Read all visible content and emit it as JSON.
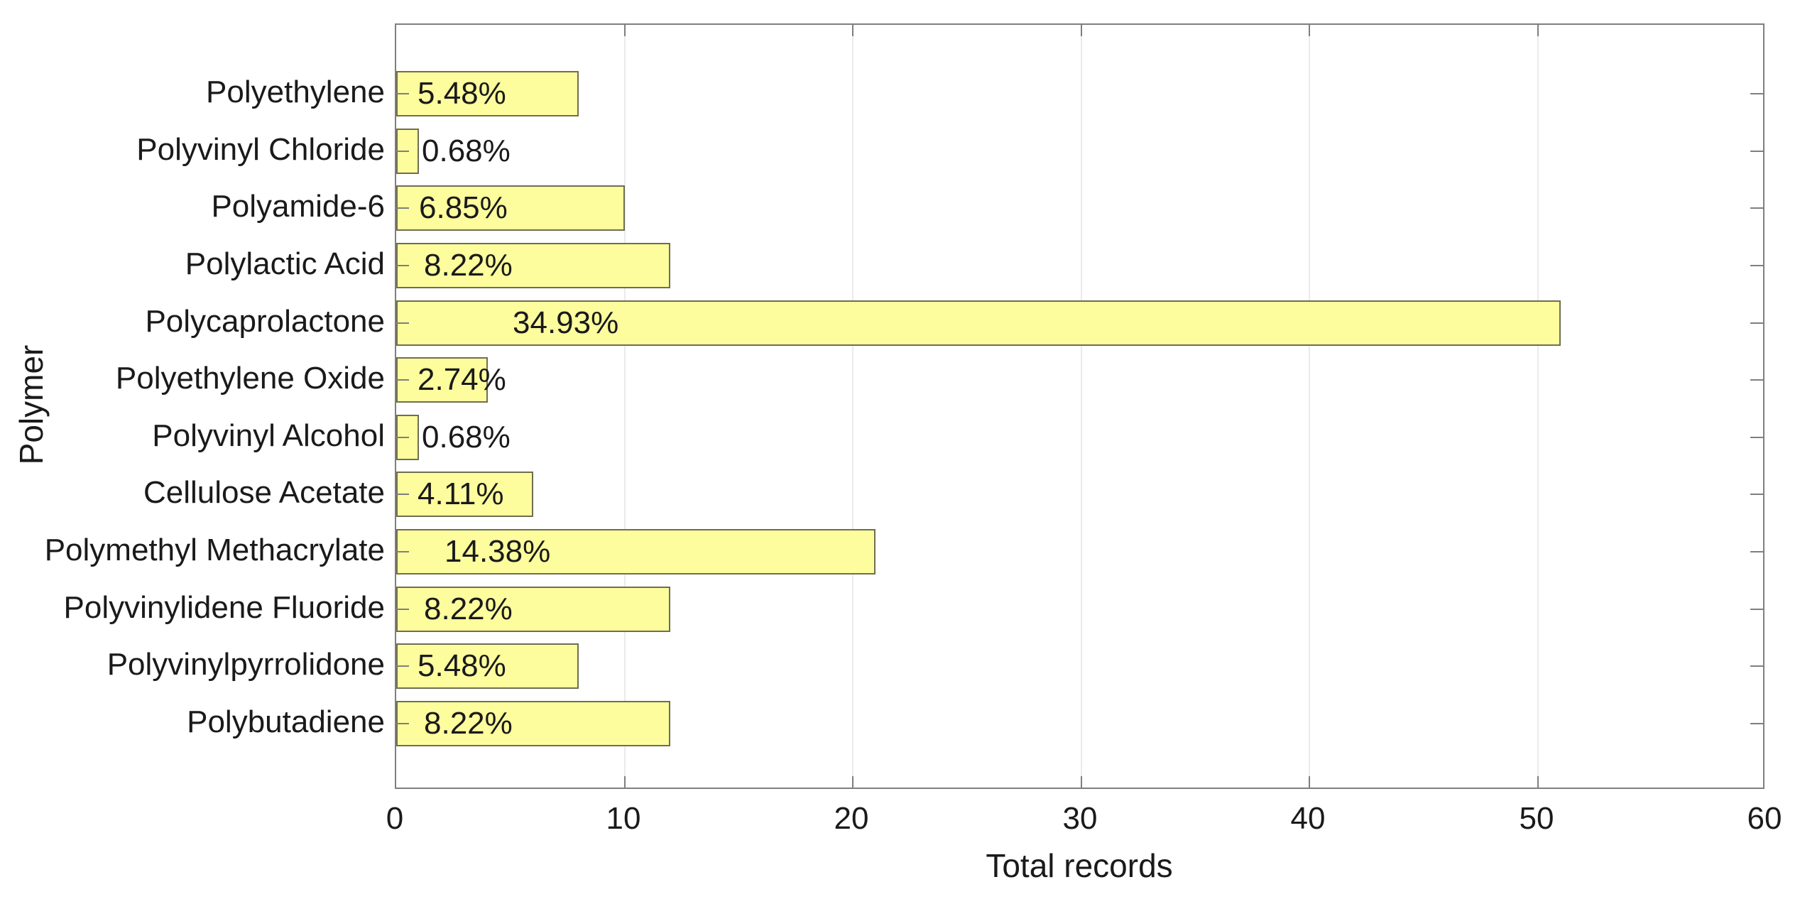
{
  "chart_data": {
    "type": "bar",
    "orientation": "horizontal",
    "xlabel": "Total records",
    "ylabel": "Polymer",
    "xlim": [
      0,
      60
    ],
    "xticks": [
      0,
      10,
      20,
      30,
      40,
      50,
      60
    ],
    "grid": "vertical",
    "legend": "none",
    "categories": [
      "Polyethylene",
      "Polyvinyl Chloride",
      "Polyamide-6",
      "Polylactic Acid",
      "Polycaprolactone",
      "Polyethylene Oxide",
      "Polyvinyl Alcohol",
      "Cellulose Acetate",
      "Polymethyl Methacrylate",
      "Polyvinylidene Fluoride",
      "Polyvinylpyrrolidone",
      "Polybutadiene"
    ],
    "values": [
      8,
      1,
      10,
      12,
      51,
      4,
      1,
      6,
      21,
      12,
      8,
      12
    ],
    "bar_labels": [
      "5.48%",
      "0.68%",
      "6.85%",
      "8.22%",
      "34.93%",
      "2.74%",
      "0.68%",
      "4.11%",
      "14.38%",
      "8.22%",
      "5.48%",
      "8.22%"
    ],
    "colors": {
      "bar_fill": "#fdfd9e",
      "bar_edge": "#6e6e52",
      "axis": "#7f7f7f",
      "grid": "#ebebeb",
      "text": "#1a1a1a"
    }
  }
}
